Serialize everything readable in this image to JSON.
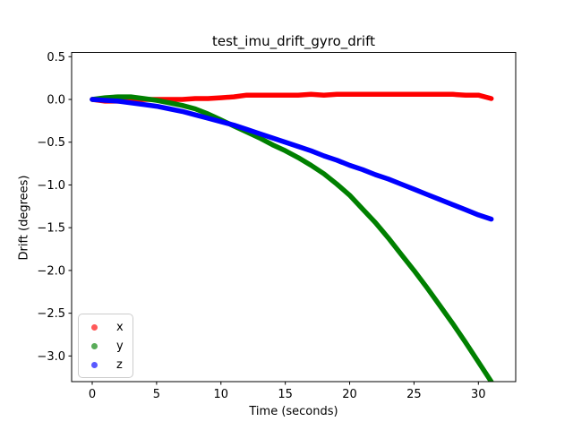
{
  "figure": {
    "background": "#ffffff",
    "axes_background": "#ffffff",
    "spine_color": "#000000",
    "text_color": "#000000",
    "legend_border_color": "#cccccc"
  },
  "chart_data": {
    "type": "scatter",
    "title": "test_imu_drift_gyro_drift",
    "xlabel": "Time (seconds)",
    "ylabel": "Drift (degrees)",
    "xlim": [
      -1.6,
      32.9
    ],
    "ylim": [
      -3.3,
      0.55
    ],
    "xticks": [
      0,
      5,
      10,
      15,
      20,
      25,
      30
    ],
    "xticklabels": [
      "0",
      "5",
      "10",
      "15",
      "20",
      "25",
      "30"
    ],
    "yticks": [
      0.5,
      0.0,
      -0.5,
      -1.0,
      -1.5,
      -2.0,
      -2.5,
      -3.0
    ],
    "yticklabels": [
      "0.5",
      "0.0",
      "−0.5",
      "−1.0",
      "−1.5",
      "−2.0",
      "−2.5",
      "−3.0"
    ],
    "grid": false,
    "marker_style": "dot",
    "marker_alpha": 0.65,
    "legend": {
      "position": "lower-left",
      "entries": [
        "x",
        "y",
        "z"
      ]
    },
    "x": [
      0,
      1,
      2,
      3,
      4,
      5,
      6,
      7,
      8,
      9,
      10,
      11,
      12,
      13,
      14,
      15,
      16,
      17,
      18,
      19,
      20,
      21,
      22,
      23,
      24,
      25,
      26,
      27,
      28,
      29,
      30,
      31
    ],
    "series": [
      {
        "name": "x",
        "color": "#ff0000",
        "legend_marker_color": "rgba(255,0,0,0.65)",
        "values": [
          0.0,
          -0.02,
          -0.02,
          -0.01,
          0.0,
          0.0,
          0.0,
          0.0,
          0.01,
          0.01,
          0.02,
          0.03,
          0.05,
          0.05,
          0.05,
          0.05,
          0.05,
          0.06,
          0.05,
          0.06,
          0.06,
          0.06,
          0.06,
          0.06,
          0.06,
          0.06,
          0.06,
          0.06,
          0.06,
          0.05,
          0.05,
          0.01
        ]
      },
      {
        "name": "y",
        "color": "#008000",
        "legend_marker_color": "rgba(0,128,0,0.65)",
        "values": [
          0.0,
          0.02,
          0.03,
          0.03,
          0.01,
          -0.01,
          -0.04,
          -0.07,
          -0.11,
          -0.17,
          -0.24,
          -0.31,
          -0.38,
          -0.45,
          -0.53,
          -0.6,
          -0.68,
          -0.77,
          -0.87,
          -0.99,
          -1.12,
          -1.28,
          -1.44,
          -1.62,
          -1.81,
          -2.0,
          -2.2,
          -2.41,
          -2.62,
          -2.84,
          -3.07,
          -3.3
        ]
      },
      {
        "name": "z",
        "color": "#0000ff",
        "legend_marker_color": "rgba(0,0,255,0.65)",
        "values": [
          0.0,
          -0.01,
          -0.02,
          -0.04,
          -0.06,
          -0.08,
          -0.11,
          -0.14,
          -0.18,
          -0.22,
          -0.26,
          -0.3,
          -0.35,
          -0.4,
          -0.45,
          -0.5,
          -0.55,
          -0.6,
          -0.66,
          -0.71,
          -0.77,
          -0.82,
          -0.88,
          -0.93,
          -0.99,
          -1.05,
          -1.11,
          -1.17,
          -1.23,
          -1.29,
          -1.35,
          -1.4
        ]
      }
    ]
  }
}
